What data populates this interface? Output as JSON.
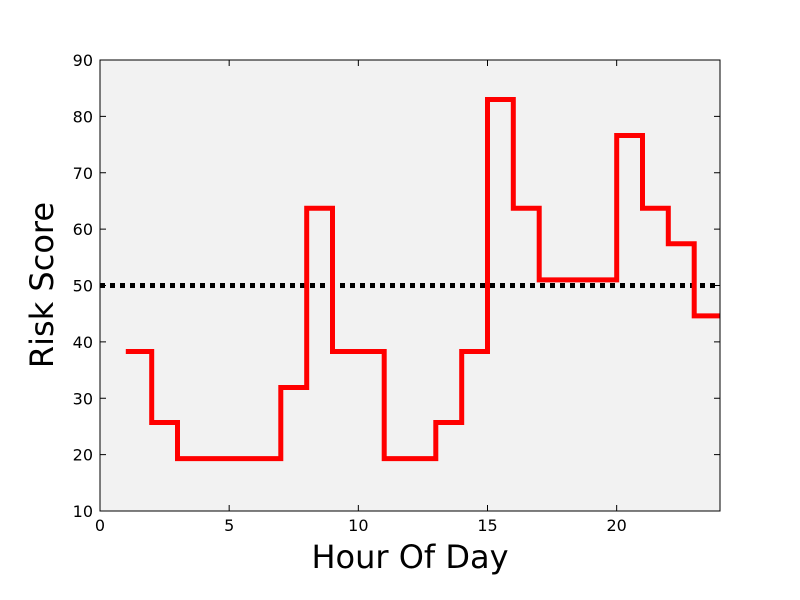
{
  "chart_data": {
    "type": "line",
    "step": "post",
    "title": "",
    "xlabel": "Hour Of Day",
    "ylabel": "Risk Score",
    "xlim": [
      0,
      24
    ],
    "ylim": [
      10,
      90
    ],
    "xticks": [
      "0",
      "5",
      "10",
      "15",
      "20"
    ],
    "yticks": [
      "10",
      "20",
      "30",
      "40",
      "50",
      "60",
      "70",
      "80",
      "90"
    ],
    "grid": false,
    "legend": "none",
    "plot_background": "#f2f2f2",
    "series": [
      {
        "color": "#ff0000",
        "style": "solid",
        "x": [
          1,
          2,
          3,
          4,
          5,
          6,
          7,
          8,
          9,
          10,
          11,
          12,
          13,
          14,
          15,
          16,
          17,
          18,
          19,
          20,
          21,
          22,
          23,
          24
        ],
        "y": [
          38.3,
          25.7,
          19.3,
          19.3,
          19.3,
          19.3,
          31.9,
          63.7,
          38.3,
          38.3,
          19.3,
          19.3,
          25.7,
          38.3,
          83,
          63.7,
          51,
          51,
          51,
          76.6,
          63.7,
          57.4,
          44.6,
          44.6
        ]
      }
    ],
    "reference_lines": [
      {
        "y": 50,
        "color": "#000000",
        "style": "dotted"
      }
    ]
  }
}
